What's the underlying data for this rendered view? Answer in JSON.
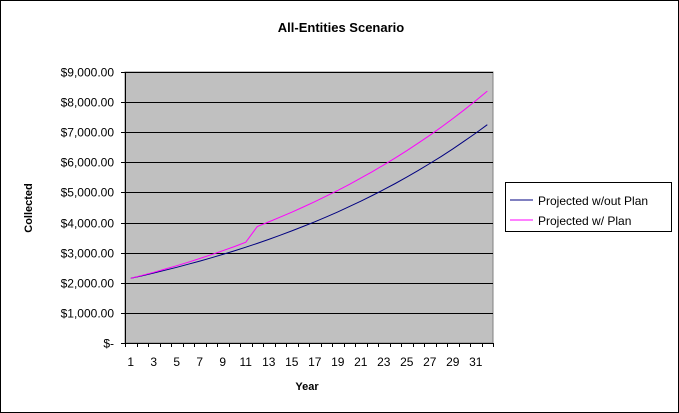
{
  "chart_data": {
    "type": "line",
    "title": "All-Entities Scenario",
    "xlabel": "Year",
    "ylabel": "Collected",
    "categories": [
      1,
      2,
      3,
      4,
      5,
      6,
      7,
      8,
      9,
      10,
      11,
      12,
      13,
      14,
      15,
      16,
      17,
      18,
      19,
      20,
      21,
      22,
      23,
      24,
      25,
      26,
      27,
      28,
      29,
      30,
      31,
      32
    ],
    "x_tick_labels": [
      "1",
      "3",
      "5",
      "7",
      "9",
      "11",
      "13",
      "15",
      "17",
      "19",
      "21",
      "23",
      "25",
      "27",
      "29",
      "31"
    ],
    "y_tick_labels": [
      "$-",
      "$1,000.00",
      "$2,000.00",
      "$3,000.00",
      "$4,000.00",
      "$5,000.00",
      "$6,000.00",
      "$7,000.00",
      "$8,000.00",
      "$9,000.00"
    ],
    "ylim": [
      0,
      9000
    ],
    "grid": "horizontal major",
    "plot_background": "#c0c0c0",
    "legend_position": "right",
    "series": [
      {
        "name": "Projected w/out Plan",
        "color": "#000080",
        "values": [
          2150,
          2236,
          2325,
          2418,
          2515,
          2616,
          2720,
          2829,
          2942,
          3060,
          3182,
          3309,
          3442,
          3579,
          3723,
          3871,
          4026,
          4187,
          4355,
          4529,
          4710,
          4899,
          5094,
          5298,
          5510,
          5731,
          5960,
          6198,
          6446,
          6704,
          6972,
          7251
        ]
      },
      {
        "name": "Projected w/ Plan",
        "color": "#ff00ff",
        "values": [
          2150,
          2247,
          2349,
          2456,
          2567,
          2683,
          2805,
          2932,
          3064,
          3203,
          3348,
          3870,
          4022,
          4180,
          4345,
          4515,
          4693,
          4877,
          5069,
          5268,
          5475,
          5690,
          5914,
          6146,
          6388,
          6639,
          6899,
          7170,
          7452,
          7745,
          8049,
          8366
        ]
      }
    ]
  }
}
